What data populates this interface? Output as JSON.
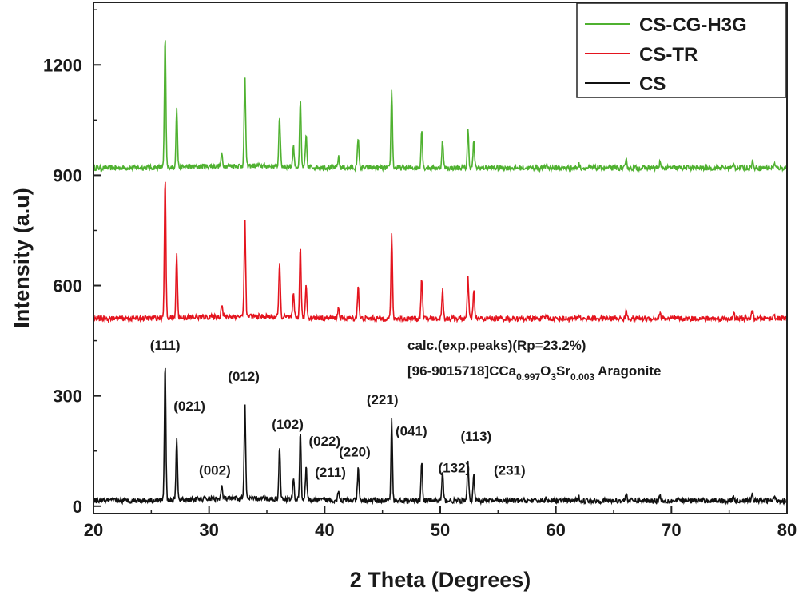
{
  "chart_data": {
    "type": "line",
    "xlabel": "2 Theta (Degrees)",
    "ylabel": "Intensity (a.u)",
    "xlim": [
      20,
      80
    ],
    "ylim": [
      -20,
      1370
    ],
    "xticks": [
      20,
      30,
      40,
      50,
      60,
      70,
      80
    ],
    "yticks": [
      0,
      300,
      600,
      900,
      1200
    ],
    "legend_position": "top-right",
    "baseline_peaks": [
      {
        "x": 26.2,
        "y": 385
      },
      {
        "x": 27.2,
        "y": 170
      },
      {
        "x": 31.1,
        "y": 35
      },
      {
        "x": 33.1,
        "y": 265
      },
      {
        "x": 36.1,
        "y": 150
      },
      {
        "x": 37.3,
        "y": 60
      },
      {
        "x": 37.9,
        "y": 190
      },
      {
        "x": 38.4,
        "y": 90
      },
      {
        "x": 41.2,
        "y": 30
      },
      {
        "x": 42.9,
        "y": 90
      },
      {
        "x": 45.8,
        "y": 225
      },
      {
        "x": 48.4,
        "y": 110
      },
      {
        "x": 50.2,
        "y": 80
      },
      {
        "x": 52.4,
        "y": 110
      },
      {
        "x": 52.9,
        "y": 75
      },
      {
        "x": 59.2,
        "y": 10
      },
      {
        "x": 62.0,
        "y": 10
      },
      {
        "x": 66.1,
        "y": 20
      },
      {
        "x": 69.0,
        "y": 15
      },
      {
        "x": 75.4,
        "y": 12
      },
      {
        "x": 77.0,
        "y": 20
      },
      {
        "x": 78.9,
        "y": 12
      }
    ],
    "series": [
      {
        "name": "CS-CG-H3G",
        "color": "#4fb130",
        "offset": 920,
        "peak_scale": 0.93
      },
      {
        "name": "CS-TR",
        "color": "#e4141e",
        "offset": 510,
        "peak_scale": 1.0
      },
      {
        "name": "CS",
        "color": "#111111",
        "offset": 15,
        "peak_scale": 0.97
      }
    ],
    "peak_labels": [
      {
        "text": "(111)",
        "x": 26.2,
        "y": 425
      },
      {
        "text": "(021)",
        "x": 28.3,
        "y": 260
      },
      {
        "text": "(012)",
        "x": 33.0,
        "y": 340
      },
      {
        "text": "(102)",
        "x": 36.8,
        "y": 210
      },
      {
        "text": "(002)",
        "x": 30.5,
        "y": 85
      },
      {
        "text": "(022)",
        "x": 40.0,
        "y": 165
      },
      {
        "text": "(211)",
        "x": 40.5,
        "y": 80
      },
      {
        "text": "(220)",
        "x": 42.6,
        "y": 135
      },
      {
        "text": "(221)",
        "x": 45.0,
        "y": 278
      },
      {
        "text": "(041)",
        "x": 47.5,
        "y": 192
      },
      {
        "text": "(132)",
        "x": 51.2,
        "y": 92
      },
      {
        "text": "(113)",
        "x": 53.1,
        "y": 178
      },
      {
        "text": "(231)",
        "x": 56.0,
        "y": 85
      }
    ],
    "annotation_calc": "calc.(exp.peaks)(Rp=23.2%)",
    "annotation_ref": {
      "prefix": "[96-9015718]CCa",
      "sub1": "0.997",
      "mid": "O",
      "sub2": "3",
      "mid2": "Sr",
      "sub3": "0.003",
      "suffix": " Aragonite"
    }
  }
}
